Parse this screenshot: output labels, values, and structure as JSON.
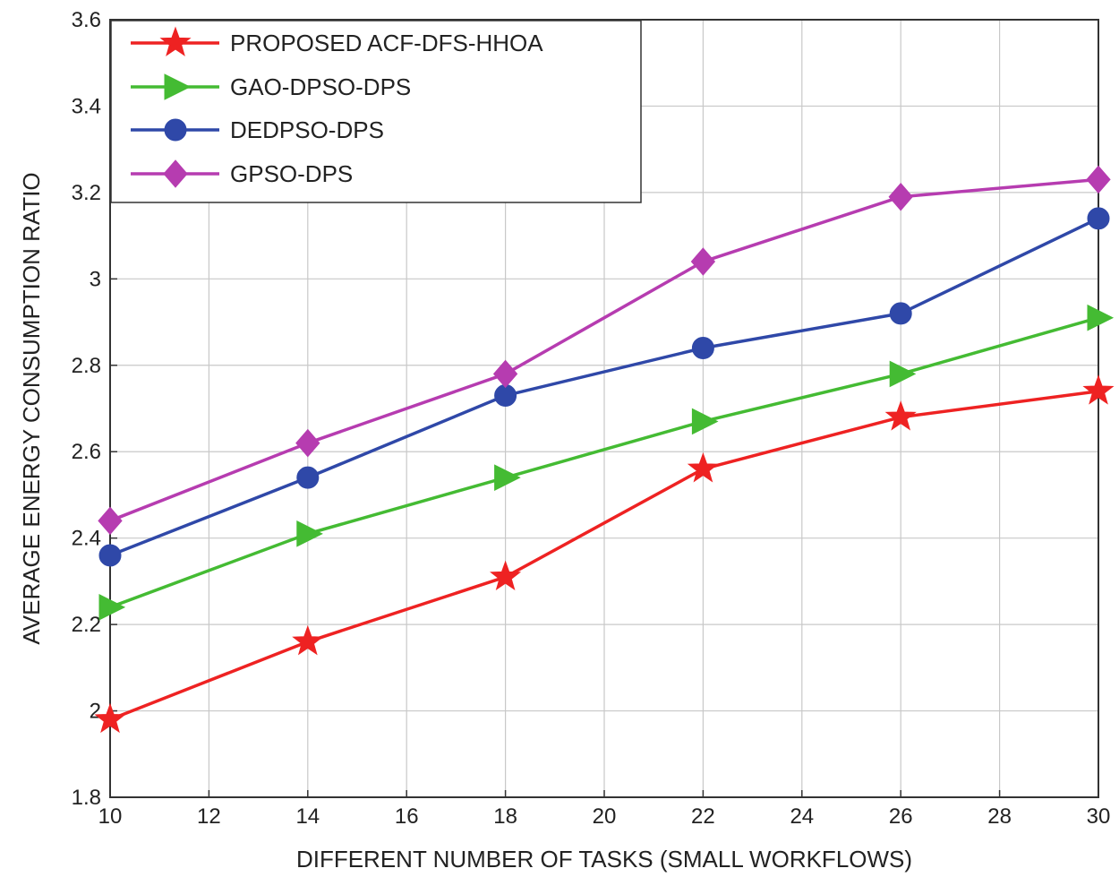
{
  "chart_data": {
    "type": "line",
    "title": "",
    "xlabel": "DIFFERENT NUMBER OF TASKS (SMALL WORKFLOWS)",
    "ylabel": "AVERAGE ENERGY CONSUMPTION RATIO",
    "xlim": [
      10,
      30
    ],
    "ylim": [
      1.8,
      3.6
    ],
    "xticks": [
      10,
      12,
      14,
      16,
      18,
      20,
      22,
      24,
      26,
      28,
      30
    ],
    "yticks": [
      1.8,
      2,
      2.2,
      2.4,
      2.6,
      2.8,
      3,
      3.2,
      3.4,
      3.6
    ],
    "xtick_labels": [
      "10",
      "12",
      "14",
      "16",
      "18",
      "20",
      "22",
      "24",
      "26",
      "28",
      "30"
    ],
    "ytick_labels": [
      "1.8",
      "2",
      "2.2",
      "2.4",
      "2.6",
      "2.8",
      "3",
      "3.2",
      "3.4",
      "3.6"
    ],
    "grid": true,
    "legend_position": "top-left",
    "x": [
      10,
      14,
      18,
      22,
      26,
      30
    ],
    "series": [
      {
        "name": "PROPOSED ACF-DFS-HHOA",
        "color": "#ee2222",
        "marker": "star",
        "values": [
          1.98,
          2.16,
          2.31,
          2.56,
          2.68,
          2.74
        ]
      },
      {
        "name": "GAO-DPSO-DPS",
        "color": "#44bb33",
        "marker": "triangle-right",
        "values": [
          2.24,
          2.41,
          2.54,
          2.67,
          2.78,
          2.91
        ]
      },
      {
        "name": " DEDPSO-DPS",
        "color": "#2f48a8",
        "marker": "circle",
        "values": [
          2.36,
          2.54,
          2.73,
          2.84,
          2.92,
          3.14
        ]
      },
      {
        "name": "GPSO-DPS",
        "color": "#b63cb0",
        "marker": "diamond",
        "values": [
          2.44,
          2.62,
          2.78,
          3.04,
          3.19,
          3.23
        ]
      }
    ]
  }
}
